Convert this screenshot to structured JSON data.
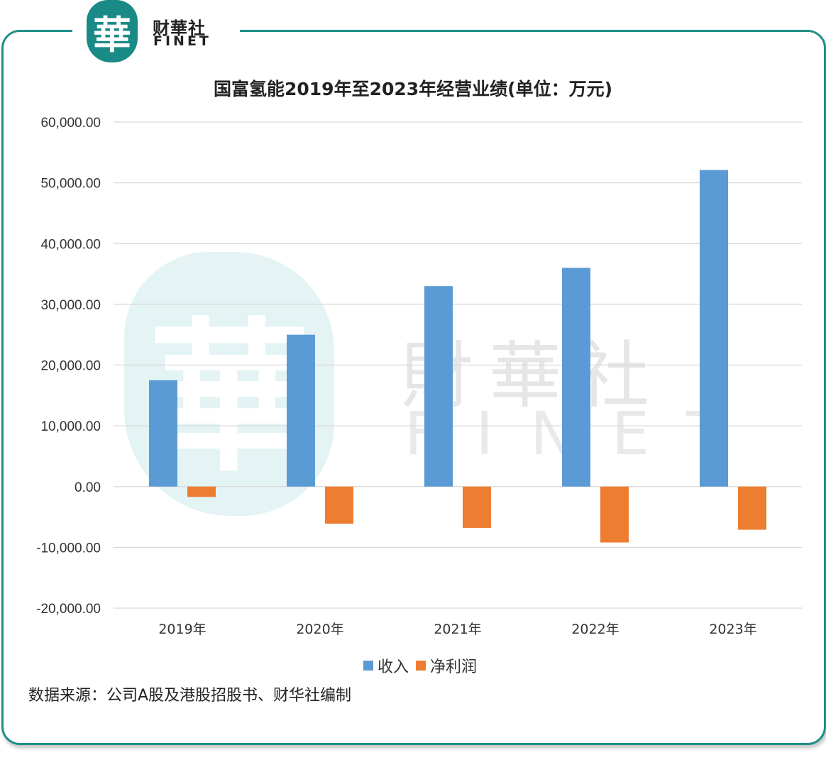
{
  "brand": {
    "seal_char": "華",
    "name_cn": "财華社",
    "name_en": "FINET"
  },
  "watermark": {
    "seal_char": "華",
    "name_cn": "財華社",
    "name_en": "FINET"
  },
  "colors": {
    "frame": "#1f8f8a",
    "revenue": "#5b9bd5",
    "net_profit": "#ed7d31",
    "grid": "#d9d9d9"
  },
  "chart_data": {
    "type": "bar",
    "title": "国富氢能2019年至2023年经营业绩(单位：万元)",
    "categories": [
      "2019年",
      "2020年",
      "2021年",
      "2022年",
      "2023年"
    ],
    "series": [
      {
        "name": "收入",
        "values": [
          17500,
          25000,
          33000,
          36000,
          52100
        ]
      },
      {
        "name": "净利润",
        "values": [
          -1700,
          -6100,
          -6800,
          -9200,
          -7100
        ]
      }
    ],
    "ylim": [
      -20000,
      60000
    ],
    "yticks": [
      60000,
      50000,
      40000,
      30000,
      20000,
      10000,
      0,
      -10000,
      -20000
    ],
    "ytick_labels": [
      "60,000.00",
      "50,000.00",
      "40,000.00",
      "30,000.00",
      "20,000.00",
      "10,000.00",
      "0.00",
      "-10,000.00",
      "-20,000.00"
    ],
    "grid": true,
    "legend": "bottom-center"
  },
  "source_note": "数据来源：公司A股及港股招股书、财华社编制"
}
